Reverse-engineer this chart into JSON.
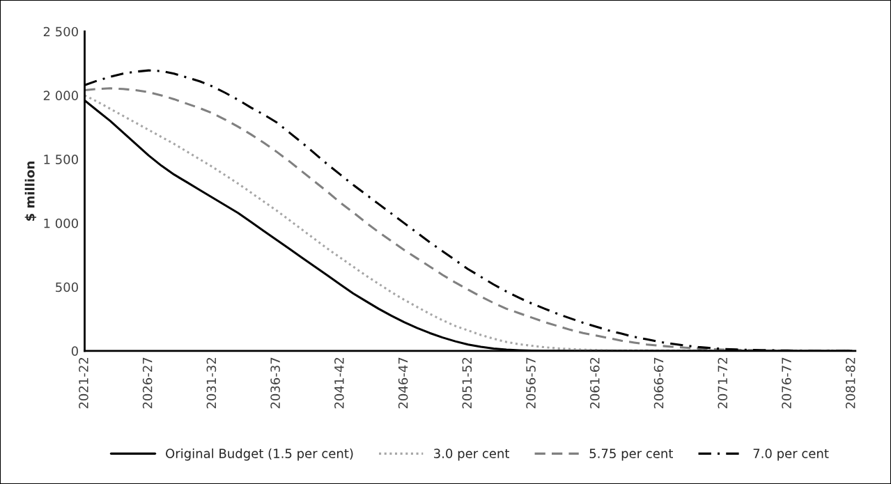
{
  "chart_data": {
    "type": "line",
    "ylabel": "$ million",
    "categories": [
      "2021-22",
      null,
      null,
      null,
      null,
      "2026-27",
      null,
      null,
      null,
      null,
      "2031-32",
      null,
      null,
      null,
      null,
      "2036-37",
      null,
      null,
      null,
      null,
      "2041-42",
      null,
      null,
      null,
      null,
      "2046-47",
      null,
      null,
      null,
      null,
      "2051-52",
      null,
      null,
      null,
      null,
      "2056-57",
      null,
      null,
      null,
      null,
      "2061-62",
      null,
      null,
      null,
      null,
      "2066-67",
      null,
      null,
      null,
      null,
      "2071-72",
      null,
      null,
      null,
      null,
      "2076-77",
      null,
      null,
      null,
      null,
      "2081-82"
    ],
    "series": [
      {
        "name": "Original Budget (1.5 per cent)",
        "color": "#000000",
        "line_style": "solid",
        "values": [
          1960,
          1880,
          1800,
          1710,
          1620,
          1530,
          1450,
          1380,
          1320,
          1260,
          1200,
          1140,
          1080,
          1010,
          940,
          870,
          800,
          730,
          660,
          590,
          520,
          450,
          390,
          330,
          275,
          225,
          180,
          140,
          105,
          75,
          50,
          32,
          18,
          10,
          5,
          2,
          0,
          0,
          0,
          0,
          0,
          0,
          0,
          0,
          0,
          0,
          0,
          0,
          0,
          0,
          0,
          0,
          0,
          0,
          0,
          0,
          0,
          0,
          0,
          0,
          0
        ]
      },
      {
        "name": "3.0 per cent",
        "color": "#a6a6a6",
        "line_style": "dotted",
        "values": [
          2000,
          1950,
          1895,
          1840,
          1785,
          1730,
          1675,
          1620,
          1560,
          1500,
          1440,
          1375,
          1310,
          1240,
          1170,
          1100,
          1025,
          950,
          875,
          800,
          730,
          660,
          590,
          525,
          460,
          400,
          345,
          290,
          240,
          195,
          160,
          125,
          95,
          70,
          52,
          40,
          28,
          20,
          14,
          10,
          7,
          5,
          3,
          2,
          1,
          1,
          0,
          0,
          0,
          0,
          0,
          0,
          0,
          0,
          0,
          0,
          0,
          0,
          0,
          0,
          0
        ]
      },
      {
        "name": "5.75 per cent",
        "color": "#808080",
        "line_style": "dashed",
        "values": [
          2040,
          2050,
          2055,
          2050,
          2040,
          2025,
          2000,
          1970,
          1935,
          1900,
          1860,
          1810,
          1755,
          1695,
          1630,
          1560,
          1485,
          1405,
          1325,
          1245,
          1160,
          1085,
          1005,
          930,
          860,
          790,
          725,
          660,
          595,
          535,
          480,
          425,
          375,
          330,
          295,
          260,
          225,
          195,
          165,
          140,
          120,
          100,
          80,
          65,
          50,
          40,
          32,
          25,
          19,
          14,
          10,
          8,
          6,
          4,
          3,
          2,
          1,
          1,
          0,
          0,
          0
        ]
      },
      {
        "name": "7.0 per cent",
        "color": "#000000",
        "line_style": "dashdot",
        "values": [
          2080,
          2115,
          2145,
          2170,
          2185,
          2195,
          2190,
          2170,
          2140,
          2110,
          2070,
          2020,
          1965,
          1905,
          1850,
          1790,
          1710,
          1630,
          1545,
          1460,
          1380,
          1300,
          1225,
          1150,
          1075,
          1000,
          925,
          850,
          780,
          710,
          640,
          580,
          520,
          465,
          415,
          370,
          330,
          290,
          255,
          220,
          190,
          160,
          135,
          110,
          90,
          70,
          55,
          42,
          30,
          22,
          15,
          11,
          8,
          6,
          4,
          3,
          2,
          1,
          1,
          0,
          0
        ]
      }
    ],
    "ylim": [
      0,
      2500
    ],
    "yticks": [
      0,
      500,
      {
        "value": 1000,
        "label": "1 000"
      },
      {
        "value": 1500,
        "label": "1 500"
      },
      {
        "value": 2000,
        "label": "2 000"
      },
      {
        "value": 2500,
        "label": "2 500"
      }
    ],
    "grid": false,
    "legend": "bottom"
  }
}
